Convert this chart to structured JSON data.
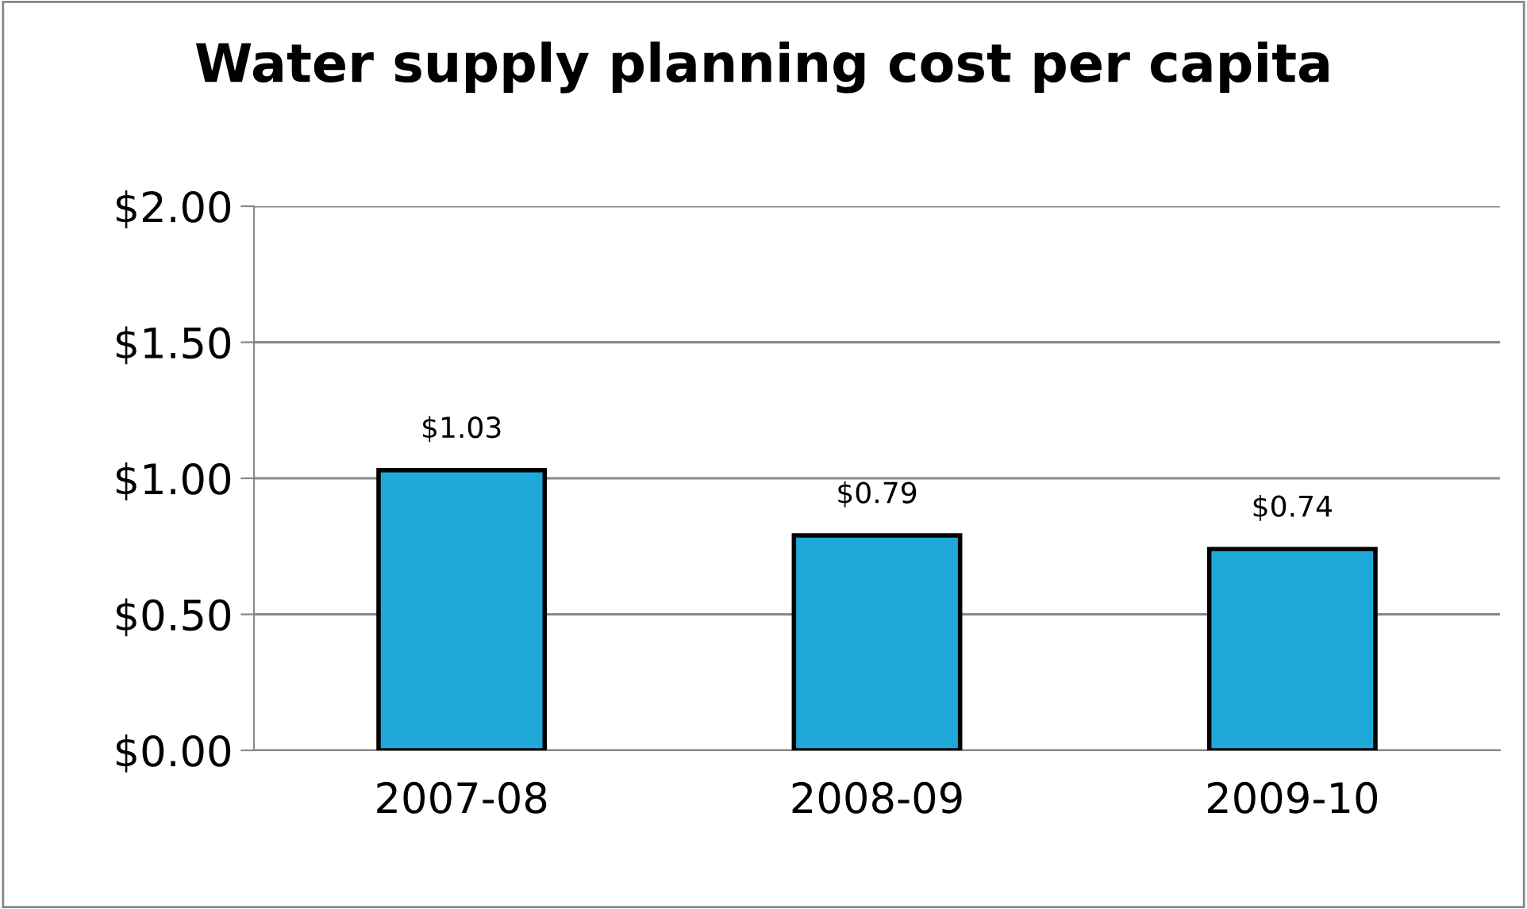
{
  "chart_data": {
    "type": "bar",
    "title": "Water supply planning cost per capita",
    "categories": [
      "2007-08",
      "2008-09",
      "2009-10"
    ],
    "values": [
      1.03,
      0.79,
      0.74
    ],
    "value_labels": [
      "$1.03",
      "$0.79",
      "$0.74"
    ],
    "color": "#1fa9d9",
    "ylim": [
      0,
      2
    ],
    "yticks": [
      {
        "value": 0,
        "label": "$0.00"
      },
      {
        "value": 0.5,
        "label": "$0.50"
      },
      {
        "value": 1,
        "label": "$1.00"
      },
      {
        "value": 1.5,
        "label": "$1.50"
      },
      {
        "value": 2,
        "label": "$2.00"
      }
    ],
    "grid": "y",
    "legend": false
  }
}
